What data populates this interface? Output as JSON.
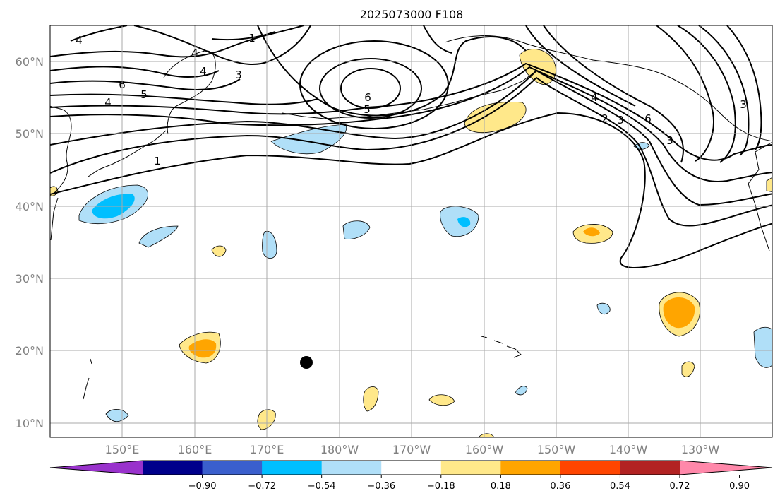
{
  "map": {
    "title": "2025073000 F108",
    "lat_labels": [
      "10°N",
      "20°N",
      "30°N",
      "40°N",
      "50°N",
      "60°N"
    ],
    "lon_labels": [
      "150°E",
      "160°E",
      "170°E",
      "180°W",
      "170°W",
      "160°W",
      "150°W",
      "140°W",
      "130°W"
    ],
    "contour_labels": [
      "4",
      "1",
      "4",
      "4",
      "3",
      "6",
      "5",
      "4",
      "6",
      "5",
      "1",
      "4",
      "2",
      "3",
      "6",
      "3",
      "3"
    ],
    "anomaly_colors": {
      "neg_light": "#b0dff8",
      "neg_mid": "#00bfff",
      "pos_light": "#ffe88a",
      "pos_mid": "#ffa500"
    },
    "marker": "black-dot",
    "grid": true
  },
  "colorbar": {
    "ticks": [
      "−0.90",
      "−0.72",
      "−0.54",
      "−0.36",
      "−0.18",
      "0.18",
      "0.36",
      "0.54",
      "0.72",
      "0.90"
    ],
    "colors": [
      "#9932cc",
      "#00008b",
      "#3a5fcd",
      "#00bfff",
      "#b0dff8",
      "#ffffff",
      "#ffe88a",
      "#ffa500",
      "#ff4500",
      "#b22222",
      "#ff88aa"
    ]
  }
}
